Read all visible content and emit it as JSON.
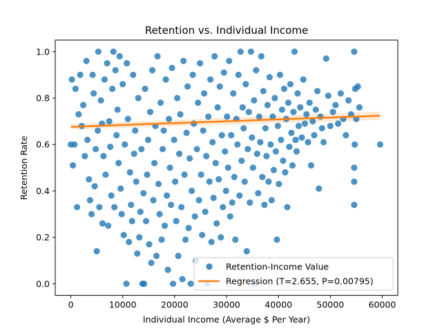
{
  "chart_data": {
    "type": "scatter",
    "title": "Retention vs. Individual Income",
    "xlabel": "Individual Income (Average $ Per Year)",
    "ylabel": "Retention Rate",
    "xlim": [
      -3000,
      63000
    ],
    "ylim": [
      -0.05,
      1.05
    ],
    "xticks": [
      0,
      10000,
      20000,
      30000,
      40000,
      50000,
      60000
    ],
    "xtick_labels": [
      "0",
      "10000",
      "20000",
      "30000",
      "40000",
      "50000",
      "60000"
    ],
    "yticks": [
      0.0,
      0.2,
      0.4,
      0.6,
      0.8,
      1.0
    ],
    "ytick_labels": [
      "0.0",
      "0.2",
      "0.4",
      "0.6",
      "0.8",
      "1.0"
    ],
    "grid": false,
    "legend_position": "lower-right",
    "colors": {
      "points": "#1f77b4",
      "regression": "#ff7f0e",
      "ci_band": "#ffbf87"
    },
    "series": [
      {
        "name": "Retention-Income Value",
        "kind": "scatter",
        "points": [
          [
            0,
            0.6
          ],
          [
            200,
            0.88
          ],
          [
            400,
            0.51
          ],
          [
            700,
            0.6
          ],
          [
            900,
            0.84
          ],
          [
            1200,
            0.33
          ],
          [
            1500,
            0.73
          ],
          [
            1800,
            0.9
          ],
          [
            2100,
            0.68
          ],
          [
            2400,
            0.77
          ],
          [
            2700,
            0.55
          ],
          [
            3000,
            0.96
          ],
          [
            3200,
            0.62
          ],
          [
            3500,
            0.45
          ],
          [
            3700,
            0.36
          ],
          [
            4000,
            0.3
          ],
          [
            4200,
            0.9
          ],
          [
            4400,
            0.82
          ],
          [
            4600,
            0.42
          ],
          [
            4800,
            0.58
          ],
          [
            5000,
            0.14
          ],
          [
            5200,
            0.66
          ],
          [
            5300,
            1.0
          ],
          [
            5500,
            0.33
          ],
          [
            5800,
            0.79
          ],
          [
            6000,
            0.69
          ],
          [
            6100,
            0.26
          ],
          [
            6300,
            0.55
          ],
          [
            6500,
            0.88
          ],
          [
            6700,
            0.47
          ],
          [
            7000,
            0.95
          ],
          [
            7200,
            0.25
          ],
          [
            7400,
            0.7
          ],
          [
            7600,
            0.59
          ],
          [
            7800,
            0.38
          ],
          [
            8000,
            0.84
          ],
          [
            8200,
            1.0
          ],
          [
            8400,
            0.33
          ],
          [
            8600,
            0.92
          ],
          [
            8800,
            0.64
          ],
          [
            9000,
            0.75
          ],
          [
            9200,
            0.52
          ],
          [
            9400,
            0.98
          ],
          [
            9600,
            0.41
          ],
          [
            9800,
            0.3
          ],
          [
            10000,
            0.86
          ],
          [
            10200,
            0.21
          ],
          [
            10400,
            0.6
          ],
          [
            10700,
            0.0
          ],
          [
            10800,
            0.95
          ],
          [
            11000,
            0.71
          ],
          [
            11200,
            0.18
          ],
          [
            11400,
            0.48
          ],
          [
            11600,
            0.34
          ],
          [
            11800,
            0.27
          ],
          [
            12000,
            0.9
          ],
          [
            12200,
            0.56
          ],
          [
            12400,
            0.66
          ],
          [
            12600,
            0.44
          ],
          [
            12800,
            0.13
          ],
          [
            13000,
            0.8
          ],
          [
            13200,
            0.2
          ],
          [
            13400,
            0.31
          ],
          [
            13600,
            0.58
          ],
          [
            13800,
            0.0
          ],
          [
            14000,
            0.39
          ],
          [
            14100,
            0.0
          ],
          [
            14300,
            0.84
          ],
          [
            14500,
            0.27
          ],
          [
            14700,
            0.47
          ],
          [
            14900,
            0.62
          ],
          [
            15100,
            0.17
          ],
          [
            15300,
            0.74
          ],
          [
            15500,
            0.09
          ],
          [
            15700,
            0.92
          ],
          [
            15900,
            0.36
          ],
          [
            16100,
            0.52
          ],
          [
            16300,
            0.68
          ],
          [
            16500,
            0.12
          ],
          [
            16700,
            0.98
          ],
          [
            16900,
            0.43
          ],
          [
            17100,
            0.3
          ],
          [
            17300,
            0.78
          ],
          [
            17500,
            0.19
          ],
          [
            17700,
            0.58
          ],
          [
            17900,
            0.66
          ],
          [
            18100,
            0.25
          ],
          [
            18300,
            0.88
          ],
          [
            18500,
            0.38
          ],
          [
            18700,
            0.06
          ],
          [
            18900,
            0.71
          ],
          [
            19100,
            0.5
          ],
          [
            19300,
            0.34
          ],
          [
            19500,
            0.93
          ],
          [
            19700,
            0.0
          ],
          [
            19900,
            0.62
          ],
          [
            20100,
            0.44
          ],
          [
            20300,
            0.27
          ],
          [
            20500,
            0.8
          ],
          [
            20700,
            0.12
          ],
          [
            20900,
            0.56
          ],
          [
            21100,
            0.73
          ],
          [
            21300,
            0.33
          ],
          [
            21500,
            0.02
          ],
          [
            21700,
            0.96
          ],
          [
            21900,
            0.47
          ],
          [
            22100,
            0.19
          ],
          [
            22300,
            0.65
          ],
          [
            22500,
            0.85
          ],
          [
            22700,
            0.24
          ],
          [
            22900,
            0.54
          ],
          [
            23100,
            0.0
          ],
          [
            23300,
            0.4
          ],
          [
            23500,
            0.9
          ],
          [
            23700,
            0.69
          ],
          [
            23900,
            0.29
          ],
          [
            24100,
            0.1
          ],
          [
            24300,
            0.58
          ],
          [
            24500,
            0.78
          ],
          [
            24700,
            0.36
          ],
          [
            24900,
            0.95
          ],
          [
            25100,
            0.47
          ],
          [
            25300,
            0.21
          ],
          [
            25500,
            0.66
          ],
          [
            25700,
            0.82
          ],
          [
            25900,
            0.31
          ],
          [
            26100,
            0.55
          ],
          [
            26300,
            0.0
          ],
          [
            26500,
            0.72
          ],
          [
            26700,
            0.44
          ],
          [
            26900,
            0.88
          ],
          [
            27100,
            0.18
          ],
          [
            27300,
            0.61
          ],
          [
            27500,
            0.37
          ],
          [
            27700,
            0.98
          ],
          [
            27900,
            0.52
          ],
          [
            28100,
            0.26
          ],
          [
            28300,
            0.76
          ],
          [
            28500,
            0.45
          ],
          [
            28700,
            0.85
          ],
          [
            28900,
            0.2
          ],
          [
            29100,
            0.64
          ],
          [
            29300,
            0.33
          ],
          [
            29500,
            0.91
          ],
          [
            29700,
            0.57
          ],
          [
            29900,
            0.4
          ],
          [
            30100,
            0.72
          ],
          [
            30300,
            0.5
          ],
          [
            30500,
            0.96
          ],
          [
            30700,
            0.29
          ],
          [
            30900,
            0.64
          ],
          [
            31100,
            0.35
          ],
          [
            31300,
            0.82
          ],
          [
            31500,
            0.46
          ],
          [
            31700,
            0.19
          ],
          [
            31900,
            0.71
          ],
          [
            32100,
            0.6
          ],
          [
            32300,
            0.9
          ],
          [
            32500,
            0.38
          ],
          [
            32700,
            1.0
          ],
          [
            32900,
            0.53
          ],
          [
            33100,
            0.76
          ],
          [
            33300,
            0.67
          ],
          [
            33500,
            0.44
          ],
          [
            33700,
            0.86
          ],
          [
            33900,
            0.14
          ],
          [
            34100,
            0.58
          ],
          [
            34300,
            0.74
          ],
          [
            34500,
            0.35
          ],
          [
            34700,
            1.0
          ],
          [
            34900,
            0.63
          ],
          [
            35100,
            0.5
          ],
          [
            35300,
            0.79
          ],
          [
            35500,
            0.0
          ],
          [
            35700,
            0.92
          ],
          [
            35900,
            0.56
          ],
          [
            36100,
            0.39
          ],
          [
            36300,
            0.72
          ],
          [
            36500,
            0.61
          ],
          [
            36700,
            0.98
          ],
          [
            36900,
            0.46
          ],
          [
            37100,
            0.83
          ],
          [
            37300,
            0.34
          ],
          [
            37500,
            0.67
          ],
          [
            37700,
            0.55
          ],
          [
            37900,
            0.77
          ],
          [
            38100,
            0.44
          ],
          [
            38300,
            0.89
          ],
          [
            38500,
            0.6
          ],
          [
            38700,
            0.36
          ],
          [
            38900,
            0.72
          ],
          [
            39100,
            0.49
          ],
          [
            39300,
            0.8
          ],
          [
            39500,
            0.57
          ],
          [
            39700,
            0.19
          ],
          [
            39900,
            0.68
          ],
          [
            40100,
            0.43
          ],
          [
            40300,
            0.9
          ],
          [
            40500,
            0.62
          ],
          [
            40700,
            0.75
          ],
          [
            40900,
            0.53
          ],
          [
            41100,
            0.84
          ],
          [
            41300,
            0.48
          ],
          [
            41500,
            0.71
          ],
          [
            41700,
            0.33
          ],
          [
            41900,
            0.78
          ],
          [
            42100,
            0.59
          ],
          [
            42300,
            0.86
          ],
          [
            42500,
            0.65
          ],
          [
            42700,
            0.51
          ],
          [
            42900,
            0.74
          ],
          [
            43100,
            1.0
          ],
          [
            43300,
            0.62
          ],
          [
            43500,
            0.57
          ],
          [
            43700,
            0.82
          ],
          [
            43900,
            0.68
          ],
          [
            44200,
            0.76
          ],
          [
            44500,
            0.63
          ],
          [
            44800,
            0.88
          ],
          [
            45100,
            0.69
          ],
          [
            45400,
            0.73
          ],
          [
            45700,
            0.61
          ],
          [
            46000,
            0.78
          ],
          [
            46300,
            0.51
          ],
          [
            46600,
            0.7
          ],
          [
            46900,
            0.64
          ],
          [
            47200,
            0.75
          ],
          [
            47500,
            0.83
          ],
          [
            47800,
            0.41
          ],
          [
            48100,
            0.72
          ],
          [
            48400,
            0.67
          ],
          [
            48700,
            0.61
          ],
          [
            49200,
            0.97
          ],
          [
            49600,
            0.81
          ],
          [
            50000,
            0.68
          ],
          [
            50500,
            0.74
          ],
          [
            51000,
            0.77
          ],
          [
            51500,
            0.69
          ],
          [
            52000,
            0.82
          ],
          [
            52500,
            0.71
          ],
          [
            53000,
            0.64
          ],
          [
            53500,
            0.79
          ],
          [
            54000,
            0.73
          ],
          [
            54600,
            1.0
          ],
          [
            54600,
            0.5
          ],
          [
            54600,
            0.44
          ],
          [
            54600,
            0.34
          ],
          [
            54700,
            0.6
          ],
          [
            54800,
            0.84
          ],
          [
            55000,
            0.71
          ],
          [
            55300,
            0.85
          ],
          [
            55600,
            0.76
          ],
          [
            59600,
            0.6
          ]
        ]
      },
      {
        "name": "Regression (T=2.655, P=0.00795)",
        "kind": "line",
        "x": [
          0,
          59600
        ],
        "y": [
          0.676,
          0.724
        ],
        "ci_halfwidth": [
          0.012,
          0.018
        ]
      }
    ]
  }
}
